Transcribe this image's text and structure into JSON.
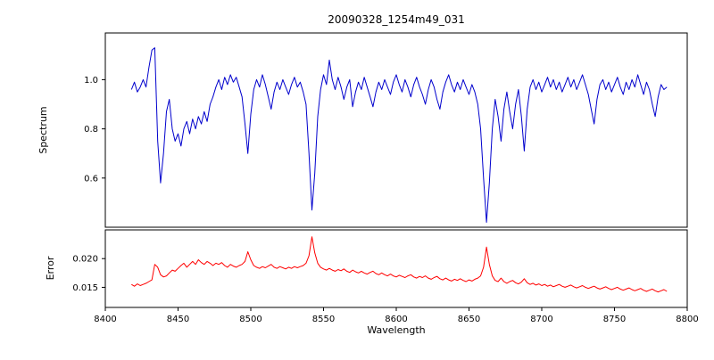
{
  "figure": {
    "title": "20090328_1254m49_031",
    "xlabel": "Wavelength",
    "ylabel_top": "Spectrum",
    "ylabel_bottom": "Error",
    "colors": {
      "spectrum": "#0000cd",
      "error": "#ff0000",
      "axis": "#000000",
      "background": "#ffffff"
    }
  },
  "chart_data": [
    {
      "type": "line",
      "title": "20090328_1254m49_031",
      "ylabel": "Spectrum",
      "xlim": [
        8400,
        8800
      ],
      "ylim": [
        0.4,
        1.19
      ],
      "yticks": [
        0.6,
        0.8,
        1.0
      ],
      "ytick_labels": [
        "0.6",
        "0.8",
        "1.0"
      ],
      "grid": false,
      "legend": false,
      "series": [
        {
          "name": "spectrum",
          "color": "#0000cd",
          "x": [
            8418,
            8420,
            8422,
            8424,
            8426,
            8428,
            8430,
            8432,
            8434,
            8436,
            8438,
            8440,
            8442,
            8444,
            8446,
            8448,
            8450,
            8452,
            8454,
            8456,
            8458,
            8460,
            8462,
            8464,
            8466,
            8468,
            8470,
            8472,
            8474,
            8476,
            8478,
            8480,
            8482,
            8484,
            8486,
            8488,
            8490,
            8492,
            8494,
            8496,
            8498,
            8500,
            8502,
            8504,
            8506,
            8508,
            8510,
            8512,
            8514,
            8516,
            8518,
            8520,
            8522,
            8524,
            8526,
            8528,
            8530,
            8532,
            8534,
            8536,
            8538,
            8540,
            8542,
            8544,
            8546,
            8548,
            8550,
            8552,
            8554,
            8556,
            8558,
            8560,
            8562,
            8564,
            8566,
            8568,
            8570,
            8572,
            8574,
            8576,
            8578,
            8580,
            8582,
            8584,
            8586,
            8588,
            8590,
            8592,
            8594,
            8596,
            8598,
            8600,
            8602,
            8604,
            8606,
            8608,
            8610,
            8612,
            8614,
            8616,
            8618,
            8620,
            8622,
            8624,
            8626,
            8628,
            8630,
            8632,
            8634,
            8636,
            8638,
            8640,
            8642,
            8644,
            8646,
            8648,
            8650,
            8652,
            8654,
            8656,
            8658,
            8660,
            8662,
            8664,
            8666,
            8668,
            8670,
            8672,
            8674,
            8676,
            8678,
            8680,
            8682,
            8684,
            8686,
            8688,
            8690,
            8692,
            8694,
            8696,
            8698,
            8700,
            8702,
            8704,
            8706,
            8708,
            8710,
            8712,
            8714,
            8716,
            8718,
            8720,
            8722,
            8724,
            8726,
            8728,
            8730,
            8732,
            8734,
            8736,
            8738,
            8740,
            8742,
            8744,
            8746,
            8748,
            8750,
            8752,
            8754,
            8756,
            8758,
            8760,
            8762,
            8764,
            8766,
            8768,
            8770,
            8772,
            8774,
            8776,
            8778,
            8780,
            8782,
            8784,
            8786
          ],
          "y": [
            0.96,
            0.99,
            0.95,
            0.97,
            1.0,
            0.97,
            1.05,
            1.12,
            1.13,
            0.75,
            0.58,
            0.7,
            0.87,
            0.92,
            0.8,
            0.75,
            0.78,
            0.73,
            0.8,
            0.83,
            0.78,
            0.84,
            0.8,
            0.85,
            0.82,
            0.87,
            0.83,
            0.9,
            0.93,
            0.97,
            1.0,
            0.96,
            1.01,
            0.98,
            1.02,
            0.99,
            1.01,
            0.97,
            0.93,
            0.82,
            0.7,
            0.86,
            0.96,
            1.0,
            0.97,
            1.02,
            0.98,
            0.93,
            0.88,
            0.95,
            0.99,
            0.96,
            1.0,
            0.97,
            0.94,
            0.98,
            1.01,
            0.97,
            0.99,
            0.95,
            0.9,
            0.7,
            0.47,
            0.62,
            0.85,
            0.96,
            1.02,
            0.98,
            1.08,
            1.0,
            0.96,
            1.01,
            0.97,
            0.92,
            0.97,
            1.0,
            0.89,
            0.95,
            0.99,
            0.96,
            1.01,
            0.97,
            0.93,
            0.89,
            0.95,
            0.99,
            0.96,
            1.0,
            0.97,
            0.94,
            0.99,
            1.02,
            0.98,
            0.95,
            1.0,
            0.97,
            0.93,
            0.98,
            1.01,
            0.97,
            0.94,
            0.9,
            0.96,
            1.0,
            0.97,
            0.92,
            0.88,
            0.95,
            0.99,
            1.02,
            0.98,
            0.95,
            0.99,
            0.96,
            1.0,
            0.97,
            0.94,
            0.98,
            0.95,
            0.9,
            0.8,
            0.6,
            0.42,
            0.58,
            0.8,
            0.92,
            0.85,
            0.75,
            0.88,
            0.95,
            0.87,
            0.8,
            0.9,
            0.96,
            0.85,
            0.71,
            0.88,
            0.97,
            1.0,
            0.96,
            0.99,
            0.95,
            0.98,
            1.01,
            0.97,
            1.0,
            0.96,
            0.99,
            0.95,
            0.98,
            1.01,
            0.97,
            1.0,
            0.96,
            0.99,
            1.02,
            0.98,
            0.94,
            0.88,
            0.82,
            0.92,
            0.98,
            1.0,
            0.96,
            0.99,
            0.95,
            0.98,
            1.01,
            0.97,
            0.94,
            0.99,
            0.96,
            1.0,
            0.97,
            1.02,
            0.98,
            0.94,
            0.99,
            0.96,
            0.9,
            0.85,
            0.93,
            0.98,
            0.96,
            0.97
          ]
        }
      ]
    },
    {
      "type": "line",
      "ylabel": "Error",
      "xlabel": "Wavelength",
      "xlim": [
        8400,
        8800
      ],
      "ylim": [
        0.0115,
        0.025
      ],
      "yticks": [
        0.015,
        0.02
      ],
      "ytick_labels": [
        "0.015",
        "0.020"
      ],
      "xticks": [
        8400,
        8450,
        8500,
        8550,
        8600,
        8650,
        8700,
        8750,
        8800
      ],
      "xtick_labels": [
        "8400",
        "8450",
        "8500",
        "8550",
        "8600",
        "8650",
        "8700",
        "8750",
        "8800"
      ],
      "grid": false,
      "legend": false,
      "series": [
        {
          "name": "error",
          "color": "#ff0000",
          "x": [
            8418,
            8420,
            8422,
            8424,
            8426,
            8428,
            8430,
            8432,
            8434,
            8436,
            8438,
            8440,
            8442,
            8444,
            8446,
            8448,
            8450,
            8452,
            8454,
            8456,
            8458,
            8460,
            8462,
            8464,
            8466,
            8468,
            8470,
            8472,
            8474,
            8476,
            8478,
            8480,
            8482,
            8484,
            8486,
            8488,
            8490,
            8492,
            8494,
            8496,
            8498,
            8500,
            8502,
            8504,
            8506,
            8508,
            8510,
            8512,
            8514,
            8516,
            8518,
            8520,
            8522,
            8524,
            8526,
            8528,
            8530,
            8532,
            8534,
            8536,
            8538,
            8540,
            8542,
            8544,
            8546,
            8548,
            8550,
            8552,
            8554,
            8556,
            8558,
            8560,
            8562,
            8564,
            8566,
            8568,
            8570,
            8572,
            8574,
            8576,
            8578,
            8580,
            8582,
            8584,
            8586,
            8588,
            8590,
            8592,
            8594,
            8596,
            8598,
            8600,
            8602,
            8604,
            8606,
            8608,
            8610,
            8612,
            8614,
            8616,
            8618,
            8620,
            8622,
            8624,
            8626,
            8628,
            8630,
            8632,
            8634,
            8636,
            8638,
            8640,
            8642,
            8644,
            8646,
            8648,
            8650,
            8652,
            8654,
            8656,
            8658,
            8660,
            8662,
            8664,
            8666,
            8668,
            8670,
            8672,
            8674,
            8676,
            8678,
            8680,
            8682,
            8684,
            8686,
            8688,
            8690,
            8692,
            8694,
            8696,
            8698,
            8700,
            8702,
            8704,
            8706,
            8708,
            8710,
            8712,
            8714,
            8716,
            8718,
            8720,
            8722,
            8724,
            8726,
            8728,
            8730,
            8732,
            8734,
            8736,
            8738,
            8740,
            8742,
            8744,
            8746,
            8748,
            8750,
            8752,
            8754,
            8756,
            8758,
            8760,
            8762,
            8764,
            8766,
            8768,
            8770,
            8772,
            8774,
            8776,
            8778,
            8780,
            8782,
            8784,
            8786
          ],
          "y": [
            0.0155,
            0.0152,
            0.0156,
            0.0153,
            0.0155,
            0.0157,
            0.016,
            0.0163,
            0.019,
            0.0185,
            0.0172,
            0.0168,
            0.017,
            0.0175,
            0.018,
            0.0178,
            0.0183,
            0.0188,
            0.0192,
            0.0185,
            0.019,
            0.0195,
            0.019,
            0.0198,
            0.0193,
            0.019,
            0.0195,
            0.0192,
            0.0188,
            0.0192,
            0.019,
            0.0193,
            0.0188,
            0.0185,
            0.019,
            0.0187,
            0.0185,
            0.0188,
            0.019,
            0.0195,
            0.0212,
            0.0198,
            0.0188,
            0.0185,
            0.0183,
            0.0186,
            0.0184,
            0.0187,
            0.019,
            0.0185,
            0.0183,
            0.0186,
            0.0184,
            0.0182,
            0.0185,
            0.0183,
            0.0186,
            0.0184,
            0.0186,
            0.0188,
            0.0192,
            0.0205,
            0.0238,
            0.021,
            0.0192,
            0.0185,
            0.0182,
            0.018,
            0.0183,
            0.018,
            0.0178,
            0.0181,
            0.0179,
            0.0182,
            0.0178,
            0.0176,
            0.018,
            0.0177,
            0.0175,
            0.0178,
            0.0175,
            0.0173,
            0.0176,
            0.0178,
            0.0174,
            0.0172,
            0.0175,
            0.0172,
            0.017,
            0.0173,
            0.017,
            0.0168,
            0.0171,
            0.0169,
            0.0167,
            0.017,
            0.0172,
            0.0168,
            0.0166,
            0.0169,
            0.0167,
            0.017,
            0.0166,
            0.0164,
            0.0167,
            0.0169,
            0.0165,
            0.0163,
            0.0166,
            0.0163,
            0.0161,
            0.0164,
            0.0162,
            0.0165,
            0.0162,
            0.016,
            0.0163,
            0.0161,
            0.0164,
            0.0166,
            0.017,
            0.0185,
            0.022,
            0.019,
            0.017,
            0.0162,
            0.016,
            0.0166,
            0.016,
            0.0157,
            0.016,
            0.0162,
            0.0158,
            0.0156,
            0.0159,
            0.0165,
            0.0158,
            0.0155,
            0.0157,
            0.0154,
            0.0156,
            0.0153,
            0.0155,
            0.0152,
            0.0154,
            0.0151,
            0.0153,
            0.0155,
            0.0152,
            0.015,
            0.0152,
            0.0154,
            0.0151,
            0.0149,
            0.0151,
            0.0153,
            0.015,
            0.0148,
            0.015,
            0.0152,
            0.0149,
            0.0147,
            0.0149,
            0.0151,
            0.0148,
            0.0146,
            0.0148,
            0.015,
            0.0147,
            0.0145,
            0.0147,
            0.0149,
            0.0146,
            0.0144,
            0.0146,
            0.0148,
            0.0145,
            0.0143,
            0.0145,
            0.0147,
            0.0144,
            0.0142,
            0.0144,
            0.0146,
            0.0143
          ]
        }
      ]
    }
  ]
}
